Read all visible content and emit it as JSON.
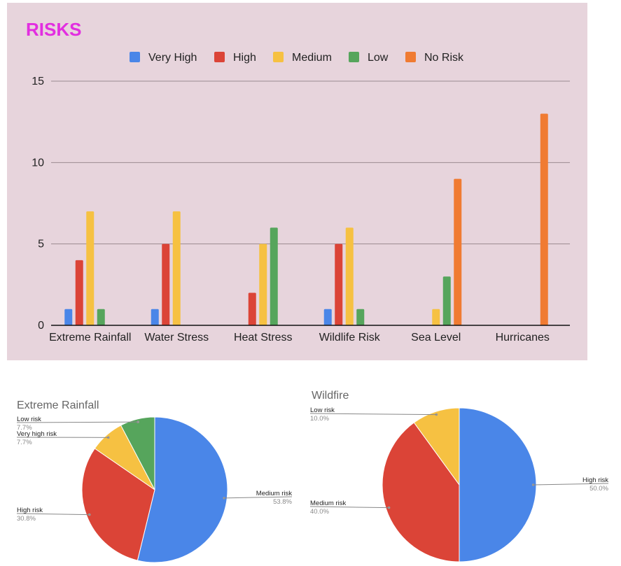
{
  "chart_data": [
    {
      "type": "bar",
      "title": "RISKS",
      "categories": [
        "Extreme Rainfall",
        "Water Stress",
        "Heat Stress",
        "Wildlife Risk",
        "Sea Level",
        "Hurricanes"
      ],
      "series": [
        {
          "name": "Very High",
          "color": "#4a86e8",
          "values": [
            1,
            1,
            0,
            1,
            0,
            0
          ]
        },
        {
          "name": "High",
          "color": "#db4437",
          "values": [
            4,
            5,
            2,
            5,
            0,
            0
          ]
        },
        {
          "name": "Medium",
          "color": "#f6c142",
          "values": [
            7,
            7,
            5,
            6,
            1,
            0
          ]
        },
        {
          "name": "Low",
          "color": "#56a55c",
          "values": [
            1,
            0,
            6,
            1,
            3,
            0
          ]
        },
        {
          "name": "No Risk",
          "color": "#f07b32",
          "values": [
            0,
            0,
            0,
            0,
            9,
            13
          ]
        }
      ],
      "ylim": [
        0,
        15
      ],
      "yticks": [
        0,
        5,
        10,
        15
      ],
      "legend": "top",
      "grid": true,
      "xlabel": "",
      "ylabel": ""
    },
    {
      "type": "pie",
      "title": "Extreme Rainfall",
      "slices": [
        {
          "label": "Medium risk",
          "value": 53.8,
          "pct": "53.8%",
          "color": "#4a86e8"
        },
        {
          "label": "High risk",
          "value": 30.8,
          "pct": "30.8%",
          "color": "#db4437"
        },
        {
          "label": "Very high risk",
          "value": 7.7,
          "pct": "7.7%",
          "color": "#f6c142"
        },
        {
          "label": "Low risk",
          "value": 7.7,
          "pct": "7.7%",
          "color": "#56a55c"
        }
      ]
    },
    {
      "type": "pie",
      "title": "Wildfire",
      "slices": [
        {
          "label": "High risk",
          "value": 50.0,
          "pct": "50.0%",
          "color": "#4a86e8"
        },
        {
          "label": "Medium risk",
          "value": 40.0,
          "pct": "40.0%",
          "color": "#db4437"
        },
        {
          "label": "Low risk",
          "value": 10.0,
          "pct": "10.0%",
          "color": "#f6c142"
        }
      ]
    }
  ]
}
